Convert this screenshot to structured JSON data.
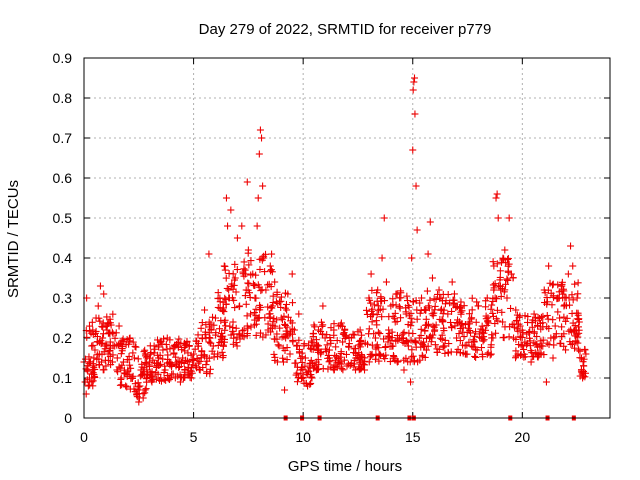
{
  "chart_data": {
    "type": "scatter",
    "title": "Day 279 of 2022, SRMTID for receiver p779",
    "xlabel": "GPS time / hours",
    "ylabel": "SRMTID / TECUs",
    "xlim": [
      0,
      24
    ],
    "ylim": [
      0,
      0.9
    ],
    "xticks": [
      0,
      5,
      10,
      15,
      20
    ],
    "xtick_labels": [
      "0",
      "5",
      "10",
      "15",
      "20"
    ],
    "yticks": [
      0,
      0.1,
      0.2,
      0.3,
      0.4,
      0.5,
      0.6,
      0.7,
      0.8,
      0.9
    ],
    "ytick_labels": [
      "0",
      "0.1",
      "0.2",
      "0.3",
      "0.4",
      "0.5",
      "0.6",
      "0.7",
      "0.8",
      "0.9"
    ],
    "grid": true,
    "marker": "+",
    "series": [
      {
        "name": "SRMTID",
        "color": "#ee0000",
        "points": [
          [
            0.0,
            0.14
          ],
          [
            0.05,
            0.09
          ],
          [
            0.1,
            0.06
          ],
          [
            0.12,
            0.3
          ],
          [
            0.15,
            0.12
          ],
          [
            0.2,
            0.08
          ],
          [
            0.25,
            0.1
          ],
          [
            0.3,
            0.14
          ],
          [
            0.35,
            0.18
          ],
          [
            0.4,
            0.22
          ],
          [
            0.45,
            0.15
          ],
          [
            0.5,
            0.17
          ],
          [
            0.55,
            0.25
          ],
          [
            0.6,
            0.19
          ],
          [
            0.65,
            0.28
          ],
          [
            0.7,
            0.16
          ],
          [
            0.75,
            0.33
          ],
          [
            0.8,
            0.14
          ],
          [
            0.85,
            0.2
          ],
          [
            0.9,
            0.31
          ],
          [
            0.95,
            0.18
          ],
          [
            1.0,
            0.13
          ],
          [
            1.05,
            0.22
          ],
          [
            1.1,
            0.16
          ],
          [
            1.2,
            0.19
          ],
          [
            1.3,
            0.14
          ],
          [
            1.4,
            0.18
          ],
          [
            1.5,
            0.12
          ],
          [
            1.6,
            0.23
          ],
          [
            1.7,
            0.1
          ],
          [
            1.8,
            0.14
          ],
          [
            1.9,
            0.08
          ],
          [
            2.0,
            0.12
          ],
          [
            2.1,
            0.2
          ],
          [
            2.2,
            0.1
          ],
          [
            2.3,
            0.15
          ],
          [
            2.4,
            0.06
          ],
          [
            2.5,
            0.04
          ],
          [
            2.55,
            0.08
          ],
          [
            2.6,
            0.12
          ],
          [
            2.7,
            0.05
          ],
          [
            2.8,
            0.16
          ],
          [
            2.9,
            0.11
          ],
          [
            3.0,
            0.14
          ],
          [
            3.1,
            0.09
          ],
          [
            3.2,
            0.18
          ],
          [
            3.3,
            0.13
          ],
          [
            3.4,
            0.15
          ],
          [
            3.5,
            0.1
          ],
          [
            3.6,
            0.17
          ],
          [
            3.7,
            0.12
          ],
          [
            3.8,
            0.2
          ],
          [
            3.9,
            0.14
          ],
          [
            4.0,
            0.11
          ],
          [
            4.1,
            0.16
          ],
          [
            4.2,
            0.13
          ],
          [
            4.3,
            0.18
          ],
          [
            4.4,
            0.09
          ],
          [
            4.5,
            0.15
          ],
          [
            4.6,
            0.12
          ],
          [
            4.7,
            0.19
          ],
          [
            4.8,
            0.14
          ],
          [
            4.9,
            0.1
          ],
          [
            5.0,
            0.16
          ],
          [
            5.1,
            0.13
          ],
          [
            5.2,
            0.18
          ],
          [
            5.3,
            0.12
          ],
          [
            5.4,
            0.2
          ],
          [
            5.5,
            0.27
          ],
          [
            5.6,
            0.15
          ],
          [
            5.7,
            0.41
          ],
          [
            5.8,
            0.22
          ],
          [
            5.9,
            0.18
          ],
          [
            6.0,
            0.25
          ],
          [
            6.1,
            0.16
          ],
          [
            6.2,
            0.3
          ],
          [
            6.3,
            0.2
          ],
          [
            6.4,
            0.38
          ],
          [
            6.5,
            0.55
          ],
          [
            6.55,
            0.48
          ],
          [
            6.6,
            0.32
          ],
          [
            6.7,
            0.52
          ],
          [
            6.8,
            0.24
          ],
          [
            6.9,
            0.35
          ],
          [
            7.0,
            0.45
          ],
          [
            7.1,
            0.28
          ],
          [
            7.2,
            0.48
          ],
          [
            7.3,
            0.22
          ],
          [
            7.4,
            0.32
          ],
          [
            7.45,
            0.59
          ],
          [
            7.5,
            0.42
          ],
          [
            7.6,
            0.26
          ],
          [
            7.7,
            0.36
          ],
          [
            7.8,
            0.3
          ],
          [
            7.9,
            0.48
          ],
          [
            7.95,
            0.55
          ],
          [
            8.0,
            0.66
          ],
          [
            8.05,
            0.72
          ],
          [
            8.1,
            0.7
          ],
          [
            8.15,
            0.58
          ],
          [
            8.2,
            0.4
          ],
          [
            8.3,
            0.32
          ],
          [
            8.4,
            0.22
          ],
          [
            8.5,
            0.38
          ],
          [
            8.6,
            0.28
          ],
          [
            8.7,
            0.34
          ],
          [
            8.8,
            0.21
          ],
          [
            8.9,
            0.18
          ],
          [
            9.0,
            0.25
          ],
          [
            9.1,
            0.14
          ],
          [
            9.15,
            0.07
          ],
          [
            9.2,
            0.2
          ],
          [
            9.3,
            0.31
          ],
          [
            9.4,
            0.16
          ],
          [
            9.5,
            0.36
          ],
          [
            9.6,
            0.22
          ],
          [
            9.7,
            0.18
          ],
          [
            9.8,
            0.26
          ],
          [
            9.9,
            0.12
          ],
          [
            10.0,
            0.1
          ],
          [
            10.1,
            0.15
          ],
          [
            10.2,
            0.08
          ],
          [
            10.3,
            0.13
          ],
          [
            10.4,
            0.1
          ],
          [
            10.5,
            0.18
          ],
          [
            10.6,
            0.12
          ],
          [
            10.7,
            0.22
          ],
          [
            10.8,
            0.16
          ],
          [
            10.9,
            0.28
          ],
          [
            11.0,
            0.2
          ],
          [
            11.2,
            0.15
          ],
          [
            11.4,
            0.22
          ],
          [
            11.6,
            0.14
          ],
          [
            11.8,
            0.19
          ],
          [
            12.0,
            0.13
          ],
          [
            12.2,
            0.2
          ],
          [
            12.4,
            0.15
          ],
          [
            12.6,
            0.22
          ],
          [
            12.8,
            0.12
          ],
          [
            13.0,
            0.3
          ],
          [
            13.1,
            0.36
          ],
          [
            13.2,
            0.26
          ],
          [
            13.3,
            0.2
          ],
          [
            13.4,
            0.32
          ],
          [
            13.5,
            0.16
          ],
          [
            13.6,
            0.4
          ],
          [
            13.7,
            0.5
          ],
          [
            13.8,
            0.34
          ],
          [
            13.9,
            0.22
          ],
          [
            14.0,
            0.28
          ],
          [
            14.1,
            0.18
          ],
          [
            14.2,
            0.24
          ],
          [
            14.3,
            0.14
          ],
          [
            14.4,
            0.3
          ],
          [
            14.5,
            0.2
          ],
          [
            14.6,
            0.12
          ],
          [
            14.7,
            0.26
          ],
          [
            14.8,
            0.18
          ],
          [
            14.9,
            0.09
          ],
          [
            14.95,
            0.4
          ],
          [
            15.0,
            0.67
          ],
          [
            15.02,
            0.82
          ],
          [
            15.05,
            0.84
          ],
          [
            15.08,
            0.85
          ],
          [
            15.1,
            0.76
          ],
          [
            15.15,
            0.58
          ],
          [
            15.2,
            0.47
          ],
          [
            15.3,
            0.2
          ],
          [
            15.4,
            0.3
          ],
          [
            15.5,
            0.18
          ],
          [
            15.6,
            0.27
          ],
          [
            15.7,
            0.41
          ],
          [
            15.8,
            0.49
          ],
          [
            15.9,
            0.35
          ],
          [
            16.0,
            0.22
          ],
          [
            16.2,
            0.32
          ],
          [
            16.4,
            0.18
          ],
          [
            16.6,
            0.26
          ],
          [
            16.8,
            0.34
          ],
          [
            17.0,
            0.2
          ],
          [
            17.2,
            0.29
          ],
          [
            17.4,
            0.16
          ],
          [
            17.6,
            0.24
          ],
          [
            17.8,
            0.19
          ],
          [
            18.0,
            0.28
          ],
          [
            18.2,
            0.22
          ],
          [
            18.4,
            0.3
          ],
          [
            18.6,
            0.2
          ],
          [
            18.7,
            0.38
          ],
          [
            18.8,
            0.55
          ],
          [
            18.85,
            0.56
          ],
          [
            18.9,
            0.5
          ],
          [
            19.0,
            0.33
          ],
          [
            19.1,
            0.24
          ],
          [
            19.2,
            0.42
          ],
          [
            19.3,
            0.3
          ],
          [
            19.4,
            0.5
          ],
          [
            19.5,
            0.36
          ],
          [
            19.6,
            0.2
          ],
          [
            19.7,
            0.27
          ],
          [
            19.8,
            0.16
          ],
          [
            19.9,
            0.23
          ],
          [
            20.0,
            0.18
          ],
          [
            20.2,
            0.21
          ],
          [
            20.4,
            0.14
          ],
          [
            20.6,
            0.25
          ],
          [
            20.8,
            0.18
          ],
          [
            21.0,
            0.32
          ],
          [
            21.1,
            0.09
          ],
          [
            21.2,
            0.38
          ],
          [
            21.3,
            0.2
          ],
          [
            21.4,
            0.15
          ],
          [
            21.5,
            0.23
          ],
          [
            21.6,
            0.3
          ],
          [
            21.7,
            0.25
          ],
          [
            21.8,
            0.33
          ],
          [
            21.9,
            0.28
          ],
          [
            22.0,
            0.3
          ],
          [
            22.1,
            0.36
          ],
          [
            22.2,
            0.43
          ],
          [
            22.3,
            0.38
          ],
          [
            22.4,
            0.22
          ],
          [
            22.5,
            0.3
          ],
          [
            22.6,
            0.24
          ],
          [
            22.7,
            0.15
          ],
          [
            22.75,
            0.1
          ],
          [
            22.8,
            0.13
          ],
          [
            22.9,
            0.16
          ]
        ],
        "bands": [
          [
            0.0,
            0.6,
            0.08,
            0.24
          ],
          [
            0.6,
            1.5,
            0.12,
            0.26
          ],
          [
            1.5,
            2.3,
            0.07,
            0.2
          ],
          [
            2.3,
            3.0,
            0.05,
            0.18
          ],
          [
            3.0,
            4.0,
            0.09,
            0.2
          ],
          [
            4.0,
            5.0,
            0.1,
            0.2
          ],
          [
            5.0,
            5.8,
            0.11,
            0.24
          ],
          [
            5.8,
            6.4,
            0.15,
            0.32
          ],
          [
            6.4,
            7.2,
            0.18,
            0.4
          ],
          [
            7.2,
            8.6,
            0.2,
            0.42
          ],
          [
            8.6,
            9.6,
            0.14,
            0.32
          ],
          [
            9.6,
            10.4,
            0.08,
            0.2
          ],
          [
            10.4,
            12.0,
            0.12,
            0.24
          ],
          [
            12.0,
            12.8,
            0.12,
            0.22
          ],
          [
            12.8,
            14.8,
            0.14,
            0.32
          ],
          [
            14.8,
            15.6,
            0.14,
            0.3
          ],
          [
            15.6,
            17.0,
            0.16,
            0.32
          ],
          [
            17.0,
            18.6,
            0.15,
            0.3
          ],
          [
            18.6,
            19.6,
            0.2,
            0.4
          ],
          [
            19.6,
            21.0,
            0.15,
            0.26
          ],
          [
            21.0,
            22.6,
            0.17,
            0.34
          ],
          [
            22.6,
            22.9,
            0.1,
            0.18
          ]
        ]
      }
    ],
    "baseline_markers_x": [
      9.2,
      9.95,
      10.75,
      13.4,
      14.85,
      15.05,
      19.45,
      21.15,
      22.35
    ]
  }
}
